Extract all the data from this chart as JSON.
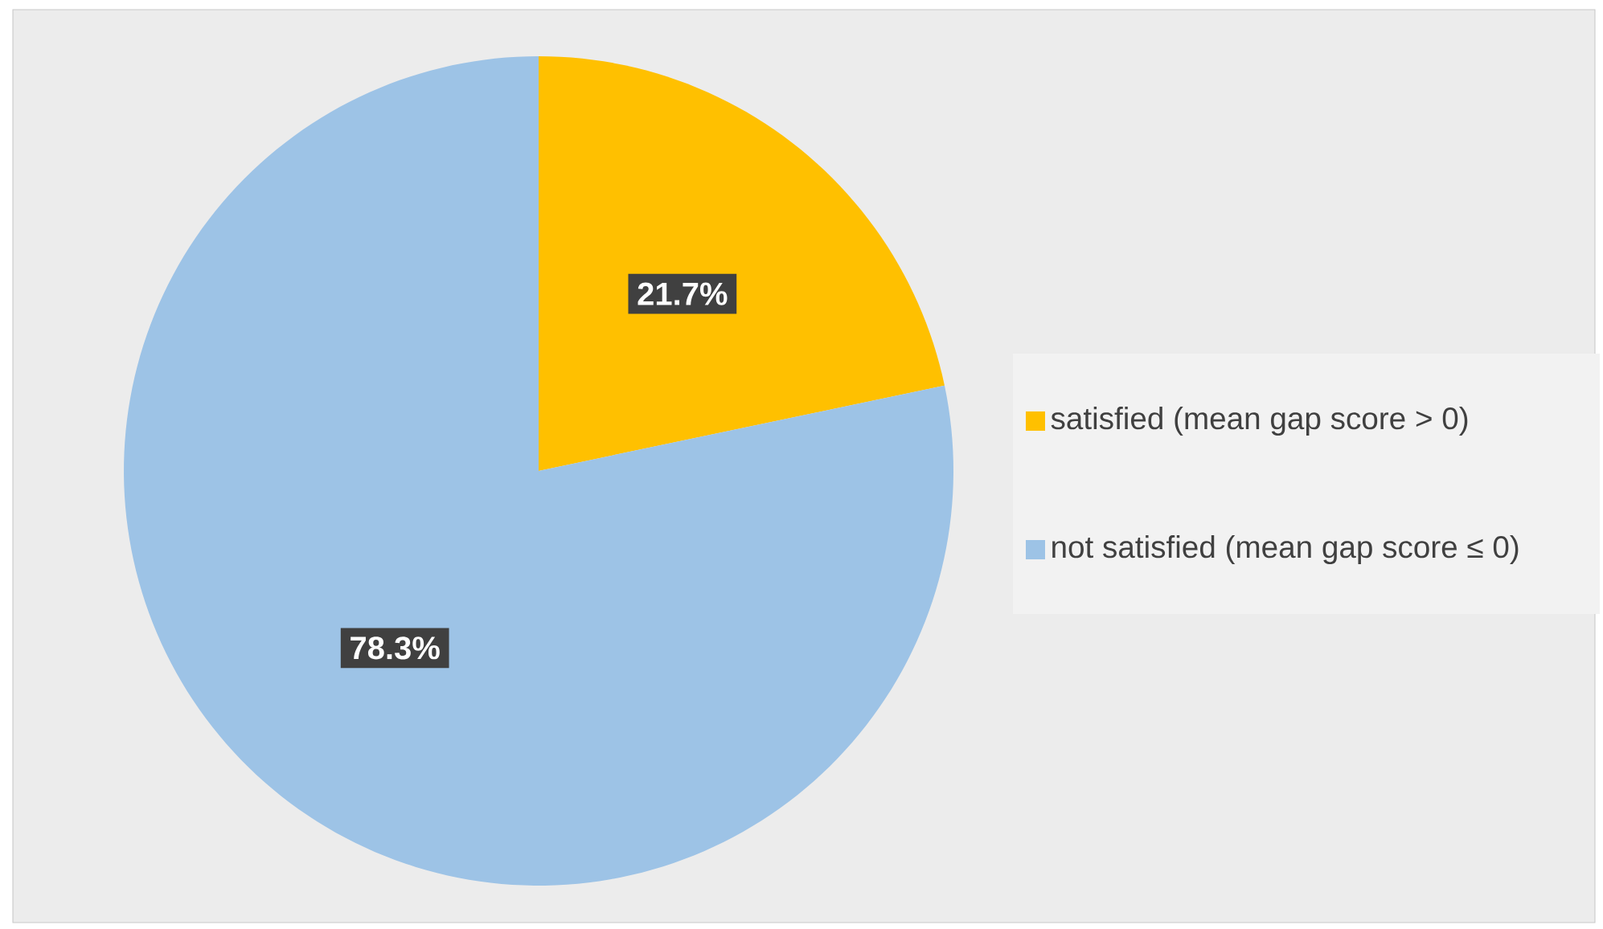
{
  "chart_data": {
    "type": "pie",
    "categories": [
      "satisfied (mean gap score > 0)",
      "not satisfied (mean gap score ≤ 0)"
    ],
    "values": [
      21.7,
      78.3
    ],
    "colors": [
      "#ffc000",
      "#9dc3e6"
    ],
    "value_labels": [
      "21.7%",
      "78.3%"
    ],
    "legend": "right"
  }
}
